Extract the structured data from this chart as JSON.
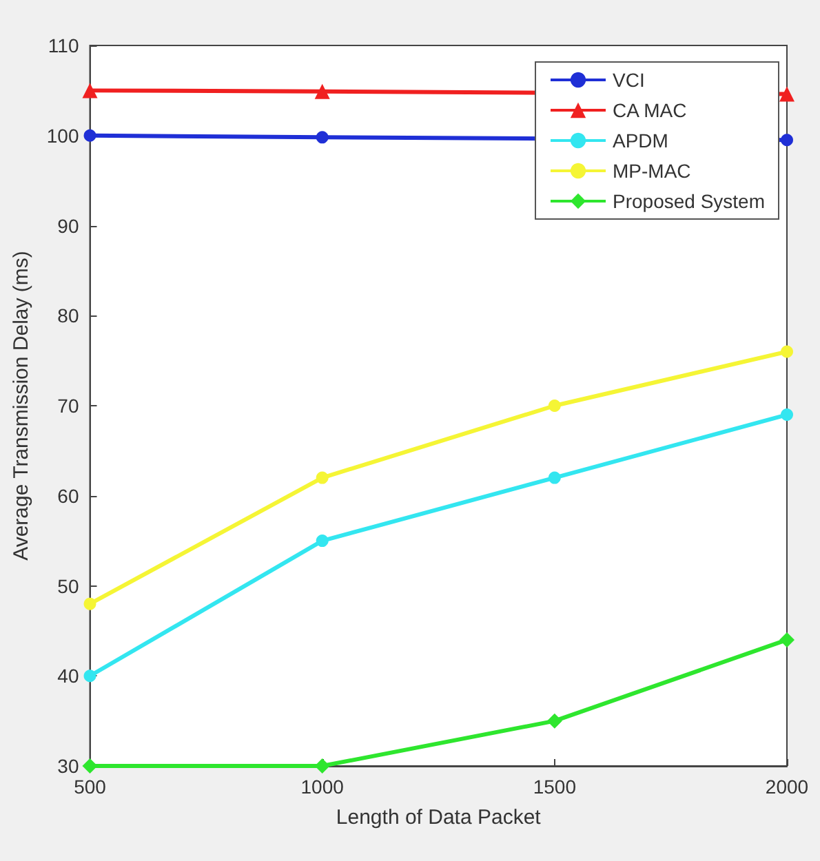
{
  "chart_data": {
    "type": "line",
    "xlabel": "Length of Data Packet",
    "ylabel": "Average Transmission Delay (ms)",
    "x": [
      500,
      1000,
      1500,
      2000
    ],
    "series": [
      {
        "name": "VCI",
        "color": "#1f2fd6",
        "marker": "circle",
        "values": [
          100,
          99.8,
          null,
          99.5
        ]
      },
      {
        "name": "CA MAC",
        "color": "#f02020",
        "marker": "triangle",
        "values": [
          105,
          104.9,
          null,
          104.6
        ]
      },
      {
        "name": "APDM",
        "color": "#33e6f0",
        "marker": "circle",
        "values": [
          40,
          55,
          62,
          69
        ]
      },
      {
        "name": "MP-MAC",
        "color": "#f5f535",
        "marker": "circle",
        "values": [
          48,
          62,
          70,
          76
        ]
      },
      {
        "name": "Proposed System",
        "color": "#2ee62e",
        "marker": "diamond",
        "values": [
          30,
          30,
          35,
          44
        ]
      }
    ],
    "xlim": [
      500,
      2000
    ],
    "xticks": [
      500,
      1000,
      1500,
      2000
    ],
    "ylim": [
      30,
      110
    ],
    "yticks": [
      30,
      40,
      50,
      60,
      70,
      80,
      90,
      100,
      110
    ],
    "grid": false,
    "legend": "top right"
  }
}
